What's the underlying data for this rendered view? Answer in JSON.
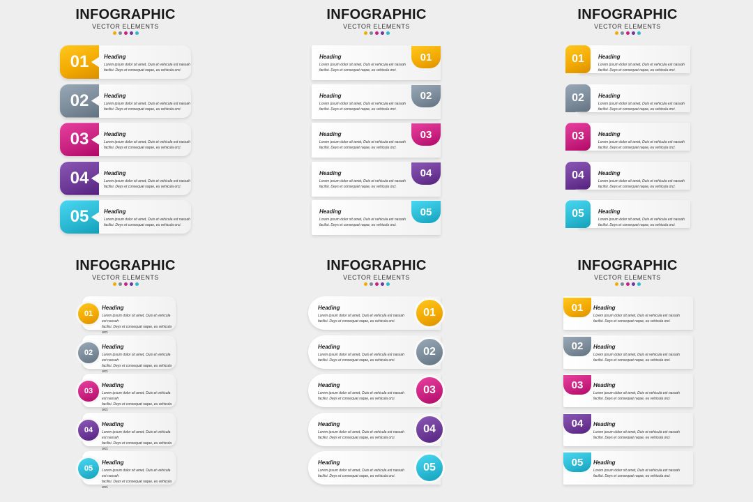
{
  "colors": [
    "#f2a900",
    "#7b8a99",
    "#c8217f",
    "#6c3a96",
    "#2bb8d2"
  ],
  "panels": [
    {
      "title": "INFOGRAPHIC",
      "subtitle": "VECTOR ELEMENTS"
    },
    {
      "title": "INFOGRAPHIC",
      "subtitle": "VECTOR ELEMENTS"
    },
    {
      "title": "INFOGRAPHIC",
      "subtitle": "VECTOR ELEMENTS"
    },
    {
      "title": "INFOGRAPHIC",
      "subtitle": "VECTOR ELEMENTS"
    },
    {
      "title": "INFOGRAPHIC",
      "subtitle": "VECTOR ELEMENTS"
    },
    {
      "title": "INFOGRAPHIC",
      "subtitle": "VECTOR ELEMENTS"
    }
  ],
  "items": [
    {
      "number": "01",
      "heading": "Heading",
      "line1": "Lorem ipsum dolor sit amet, Duis et vehicula est nassah",
      "line2": "facilisi. Deys et consequat raqae, eu vehicula orci."
    },
    {
      "number": "02",
      "heading": "Heading",
      "line1": "Lorem ipsum dolor sit amet, Duis et vehicula est nassah",
      "line2": "facilisi. Deys et consequat raqae, eu vehicula orci."
    },
    {
      "number": "03",
      "heading": "Heading",
      "line1": "Lorem ipsum dolor sit amet, Duis et vehicula est nassah",
      "line2": "facilisi. Deys et consequat raqae, eu vehicula orci."
    },
    {
      "number": "04",
      "heading": "Heading",
      "line1": "Lorem ipsum dolor sit amet, Duis et vehicula est nassah",
      "line2": "facilisi. Deys et consequat raqae, eu vehicula orci."
    },
    {
      "number": "05",
      "heading": "Heading",
      "line1": "Lorem ipsum dolor sit amet, Duis et vehicula est nassah",
      "line2": "facilisi. Deys et consequat raqae, eu vehicula orci."
    }
  ]
}
